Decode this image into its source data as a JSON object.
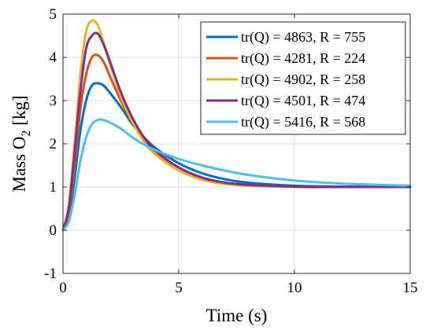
{
  "chart_data": {
    "type": "line",
    "xlabel": "Time (s)",
    "ylabel": "Mass O",
    "ylabel_sub": "2",
    "ylabel_suffix": " [kg]",
    "xlim": [
      0,
      15
    ],
    "ylim": [
      -1,
      5
    ],
    "xticks": [
      0,
      5,
      10,
      15
    ],
    "yticks": [
      -1,
      0,
      1,
      2,
      3,
      4,
      5
    ],
    "x_tick_labels": [
      "0",
      "5",
      "10",
      "15"
    ],
    "y_tick_labels": [
      "-1",
      "0",
      "1",
      "2",
      "3",
      "4",
      "5"
    ],
    "grid": true,
    "legend_position": "top-right",
    "series": [
      {
        "name": "tr(Q) = 4863, R = 755",
        "color": "#0072BD",
        "x": [
          0,
          0.25,
          0.5,
          0.75,
          1.0,
          1.25,
          1.5,
          1.75,
          2.0,
          2.5,
          3.0,
          3.5,
          4.0,
          5.0,
          6.0,
          7.0,
          8.0,
          10.0,
          12.0,
          15.0
        ],
        "y": [
          0,
          0.3,
          1.2,
          2.3,
          3.0,
          3.35,
          3.4,
          3.35,
          3.2,
          2.85,
          2.45,
          2.15,
          1.9,
          1.55,
          1.32,
          1.18,
          1.1,
          1.03,
          1.01,
          1.0
        ]
      },
      {
        "name": "tr(Q) = 4281, R = 224",
        "color": "#D95319",
        "x": [
          0,
          0.25,
          0.5,
          0.75,
          1.0,
          1.25,
          1.5,
          1.75,
          2.0,
          2.5,
          3.0,
          3.5,
          4.0,
          5.0,
          6.0,
          7.0,
          8.0,
          10.0,
          12.0,
          15.0
        ],
        "y": [
          0,
          0.4,
          1.5,
          2.8,
          3.6,
          4.0,
          4.05,
          3.9,
          3.6,
          3.0,
          2.5,
          2.1,
          1.8,
          1.45,
          1.22,
          1.1,
          1.05,
          1.01,
          1.0,
          1.0
        ]
      },
      {
        "name": "tr(Q) = 4902, R = 258",
        "color": "#EDB120",
        "x": [
          0,
          0.25,
          0.5,
          0.75,
          1.0,
          1.25,
          1.5,
          1.75,
          2.0,
          2.5,
          3.0,
          3.5,
          4.0,
          5.0,
          6.0,
          7.0,
          8.0,
          10.0,
          12.0,
          15.0
        ],
        "y": [
          0,
          0.6,
          2.0,
          3.6,
          4.6,
          4.85,
          4.75,
          4.35,
          3.9,
          3.1,
          2.5,
          2.05,
          1.75,
          1.38,
          1.17,
          1.07,
          1.03,
          1.0,
          1.0,
          1.0
        ]
      },
      {
        "name": "tr(Q) = 4501, R = 474",
        "color": "#7E2F8E",
        "x": [
          0,
          0.25,
          0.5,
          0.75,
          1.0,
          1.25,
          1.5,
          1.75,
          2.0,
          2.5,
          3.0,
          3.5,
          4.0,
          5.0,
          6.0,
          7.0,
          8.0,
          10.0,
          12.0,
          15.0
        ],
        "y": [
          0,
          0.5,
          1.8,
          3.2,
          4.2,
          4.5,
          4.55,
          4.3,
          3.95,
          3.2,
          2.6,
          2.15,
          1.85,
          1.45,
          1.22,
          1.1,
          1.05,
          1.01,
          1.0,
          1.0
        ]
      },
      {
        "name": "tr(Q) = 5416, R = 568",
        "color": "#4DBEEE",
        "x": [
          0,
          0.25,
          0.5,
          0.75,
          1.0,
          1.25,
          1.5,
          1.75,
          2.0,
          2.5,
          3.0,
          3.5,
          4.0,
          5.0,
          6.0,
          7.0,
          8.0,
          10.0,
          12.0,
          15.0
        ],
        "y": [
          0,
          0.2,
          0.8,
          1.6,
          2.15,
          2.45,
          2.55,
          2.55,
          2.5,
          2.35,
          2.15,
          1.98,
          1.85,
          1.65,
          1.5,
          1.38,
          1.28,
          1.15,
          1.08,
          1.03
        ]
      }
    ]
  }
}
